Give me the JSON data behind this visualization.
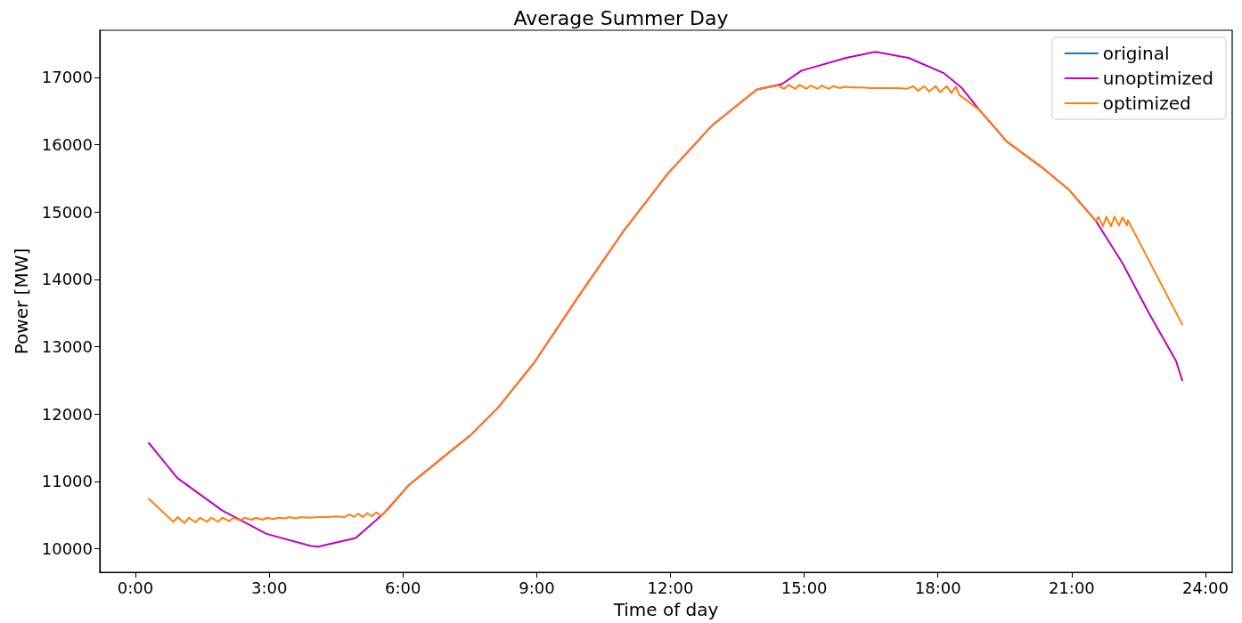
{
  "chart_data": {
    "type": "line",
    "title": "Average Summer Day",
    "xlabel": "Time of day",
    "ylabel": "Power [MW]",
    "xlim": [
      -0.8,
      24.6
    ],
    "ylim": [
      9650,
      17700
    ],
    "xticks": [
      {
        "value": 0,
        "label": "0:00"
      },
      {
        "value": 3,
        "label": "3:00"
      },
      {
        "value": 6,
        "label": "6:00"
      },
      {
        "value": 9,
        "label": "9:00"
      },
      {
        "value": 12,
        "label": "12:00"
      },
      {
        "value": 15,
        "label": "15:00"
      },
      {
        "value": 18,
        "label": "18:00"
      },
      {
        "value": 21,
        "label": "21:00"
      },
      {
        "value": 24,
        "label": "24:00"
      }
    ],
    "yticks": [
      10000,
      11000,
      12000,
      13000,
      14000,
      15000,
      16000,
      17000
    ],
    "grid": false,
    "legend": "top right",
    "marker": "none",
    "line_style": "solid",
    "series": [
      {
        "name": "original",
        "color": "#1f77b4"
      },
      {
        "name": "unoptimized",
        "color": "#bf00bf",
        "x": [
          0.3,
          0.94,
          1.94,
          2.94,
          3.94,
          4.1,
          4.94,
          5.58,
          6.14,
          6.94,
          7.54,
          8.14,
          8.94,
          9.94,
          10.94,
          11.94,
          12.94,
          13.94,
          14.5,
          14.94,
          15.94,
          16.6,
          17.34,
          18.14,
          18.54,
          18.94,
          19.54,
          20.34,
          20.94,
          21.54,
          22.14,
          22.74,
          23.34,
          23.48
        ],
        "values": [
          11570,
          11050,
          10570,
          10220,
          10040,
          10030,
          10160,
          10530,
          10950,
          11380,
          11700,
          12100,
          12760,
          13750,
          14710,
          15570,
          16290,
          16820,
          16900,
          17100,
          17290,
          17380,
          17290,
          17060,
          16840,
          16510,
          16050,
          15660,
          15330,
          14870,
          14240,
          13490,
          12790,
          12500
        ]
      },
      {
        "name": "optimized",
        "color": "#ff7f0e",
        "x": [
          0.3,
          0.85,
          0.95,
          1.1,
          1.2,
          1.35,
          1.45,
          1.6,
          1.7,
          1.85,
          1.95,
          2.1,
          2.2,
          2.35,
          2.45,
          2.6,
          2.7,
          2.85,
          2.95,
          3.1,
          3.2,
          3.35,
          3.45,
          3.6,
          3.7,
          3.9,
          4.1,
          4.3,
          4.5,
          4.7,
          4.8,
          4.9,
          5.0,
          5.1,
          5.2,
          5.3,
          5.4,
          5.5,
          5.6,
          5.7,
          6.14,
          6.94,
          7.54,
          8.14,
          8.94,
          9.94,
          10.94,
          11.94,
          12.94,
          13.94,
          14.42,
          14.55,
          14.65,
          14.8,
          14.9,
          15.05,
          15.15,
          15.3,
          15.4,
          15.55,
          15.65,
          15.8,
          15.9,
          16.1,
          16.3,
          16.5,
          16.7,
          16.9,
          17.1,
          17.3,
          17.45,
          17.55,
          17.7,
          17.8,
          17.95,
          18.05,
          18.2,
          18.3,
          18.4,
          18.48,
          18.94,
          19.54,
          20.34,
          20.94,
          21.54,
          21.6,
          21.7,
          21.78,
          21.88,
          21.96,
          22.06,
          22.14,
          22.24,
          22.26,
          23.48
        ],
        "values": [
          10740,
          10400,
          10470,
          10380,
          10460,
          10390,
          10460,
          10400,
          10460,
          10400,
          10460,
          10410,
          10460,
          10420,
          10460,
          10430,
          10460,
          10430,
          10460,
          10440,
          10460,
          10450,
          10470,
          10450,
          10470,
          10460,
          10470,
          10470,
          10480,
          10470,
          10510,
          10470,
          10520,
          10470,
          10530,
          10480,
          10540,
          10490,
          10540,
          10610,
          10950,
          11380,
          11700,
          12100,
          12760,
          13750,
          14710,
          15570,
          16290,
          16820,
          16880,
          16830,
          16890,
          16830,
          16890,
          16830,
          16880,
          16830,
          16880,
          16830,
          16870,
          16840,
          16860,
          16850,
          16850,
          16840,
          16840,
          16840,
          16840,
          16830,
          16870,
          16800,
          16870,
          16790,
          16870,
          16780,
          16870,
          16770,
          16860,
          16740,
          16510,
          16050,
          15660,
          15330,
          14870,
          14930,
          14790,
          14930,
          14790,
          14930,
          14800,
          14920,
          14800,
          14880,
          13330
        ]
      }
    ]
  }
}
